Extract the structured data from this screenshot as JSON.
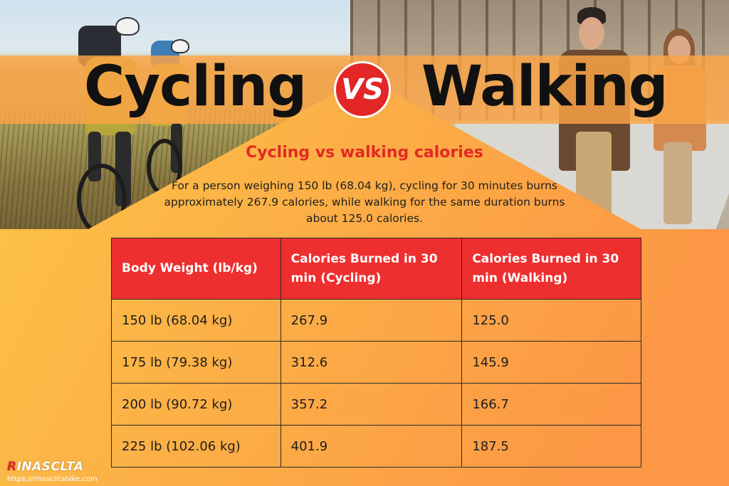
{
  "header": {
    "title_left": "Cycling",
    "vs_label": "VS",
    "title_right": "Walking"
  },
  "content": {
    "subtitle": "Cycling vs walking calories",
    "description": "For a person weighing 150 lb (68.04 kg), cycling for 30 minutes burns approximately 267.9 calories, while walking for the same duration burns about 125.0 calories."
  },
  "table": {
    "headers": [
      "Body Weight (lb/kg)",
      "Calories Burned in 30 min (Cycling)",
      "Calories Burned in 30 min (Walking)"
    ],
    "rows": [
      [
        "150 lb (68.04 kg)",
        "267.9",
        "125.0"
      ],
      [
        "175 lb (79.38 kg)",
        "312.6",
        "145.9"
      ],
      [
        "200 lb (90.72 kg)",
        "357.2",
        "166.7"
      ],
      [
        "225 lb (102.06 kg)",
        "401.9",
        "187.5"
      ]
    ]
  },
  "brand": {
    "logo_first": "R",
    "logo_rest": "INASCLTA",
    "url": "https://rinasclitabike.com"
  },
  "colors": {
    "accent_red": "#e32626",
    "header_red": "#ee2f2f",
    "subtitle_red": "#e12a24",
    "gradient_start": "#fbd64a",
    "gradient_end": "#fc8a44"
  },
  "icons": {
    "vs_badge": "vs-badge-icon"
  }
}
